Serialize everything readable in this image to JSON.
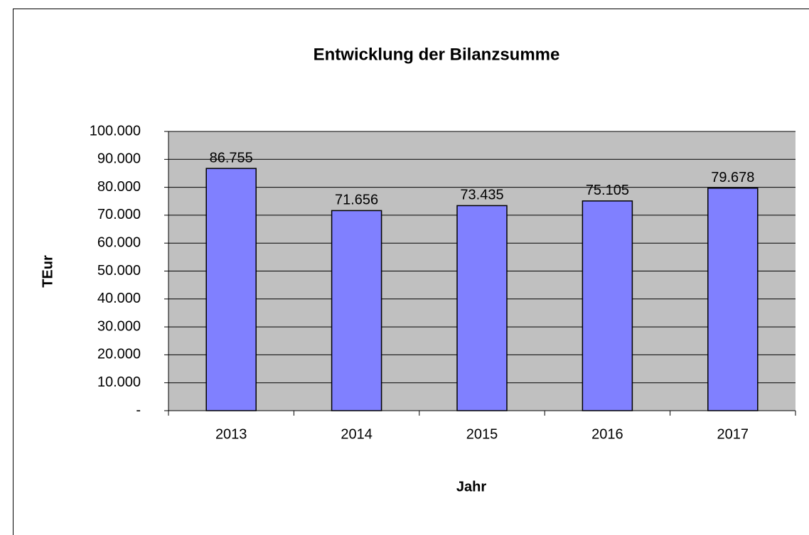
{
  "chart_data": {
    "type": "bar",
    "title": "Entwicklung der Bilanzsumme",
    "x_label": "Jahr",
    "y_label": "TEur",
    "categories": [
      "2013",
      "2014",
      "2015",
      "2016",
      "2017"
    ],
    "values": [
      86755,
      71656,
      73435,
      75105,
      79678
    ],
    "value_labels": [
      "86.755",
      "71.656",
      "73.435",
      "75.105",
      "79.678"
    ],
    "color": "#8080ff",
    "background": "#c0c0c0",
    "ylim": [
      0,
      100000
    ],
    "yticks": [
      {
        "value": 0,
        "label": "-"
      },
      {
        "value": 10000,
        "label": "10.000"
      },
      {
        "value": 20000,
        "label": "20.000"
      },
      {
        "value": 30000,
        "label": "30.000"
      },
      {
        "value": 40000,
        "label": "40.000"
      },
      {
        "value": 50000,
        "label": "50.000"
      },
      {
        "value": 60000,
        "label": "60.000"
      },
      {
        "value": 70000,
        "label": "70.000"
      },
      {
        "value": 80000,
        "label": "80.000"
      },
      {
        "value": 90000,
        "label": "90.000"
      },
      {
        "value": 100000,
        "label": "100.000"
      }
    ],
    "grid": true
  }
}
